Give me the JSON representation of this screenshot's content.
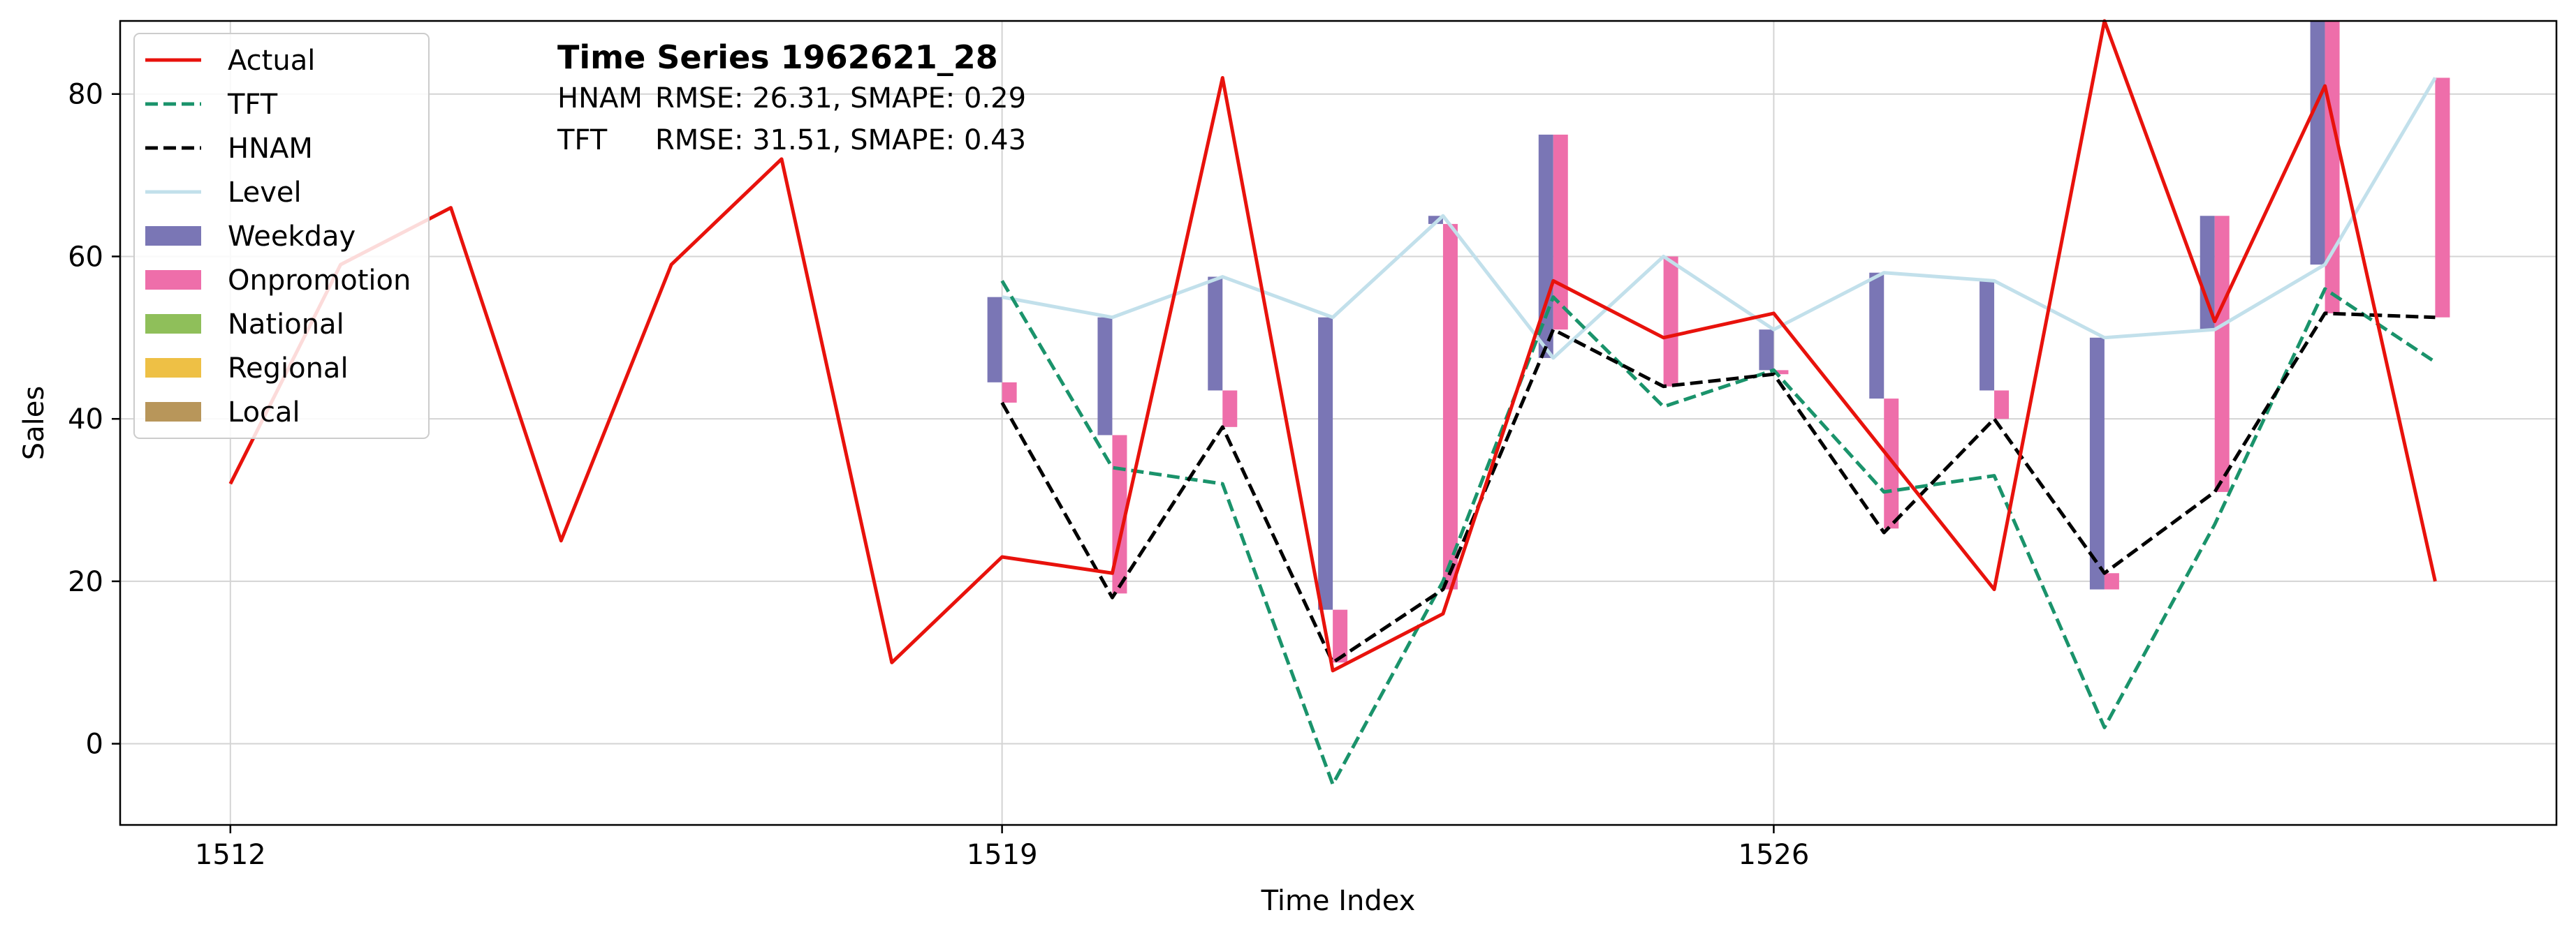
{
  "chart_data": {
    "type": "line",
    "title": "Time Series 1962621_28",
    "metrics": [
      {
        "model": "HNAM",
        "text": "RMSE: 26.31,   SMAPE: 0.29"
      },
      {
        "model": "TFT",
        "text": "RMSE: 31.51,   SMAPE: 0.43"
      }
    ],
    "xlabel": "Time Index",
    "ylabel": "Sales",
    "xlim": [
      1511,
      1533.1
    ],
    "ylim": [
      -10,
      89
    ],
    "xticks": [
      1512,
      1519,
      1526
    ],
    "yticks": [
      0,
      20,
      40,
      60,
      80
    ],
    "grid": true,
    "legend_position": "top-left",
    "legend": [
      "Actual",
      "TFT",
      "HNAM",
      "Level",
      "Weekday",
      "Onpromotion",
      "National",
      "Regional",
      "Local"
    ],
    "colors": {
      "Actual": "#e8120c",
      "TFT": "#1a936b",
      "HNAM": "#000000",
      "Level": "#c2e0eb",
      "Weekday": "#7a76b5",
      "Onpromotion": "#ee6eaa",
      "National": "#8fbf5a",
      "Regional": "#eec045",
      "Local": "#b8965a"
    },
    "series": [
      {
        "name": "Actual",
        "style": "solid",
        "x": [
          1512,
          1513,
          1514,
          1515,
          1516,
          1517,
          1518,
          1519,
          1520,
          1521,
          1522,
          1523,
          1524,
          1525,
          1526,
          1527,
          1528,
          1529,
          1530,
          1531,
          1532
        ],
        "values": [
          32,
          59,
          66,
          25,
          59,
          72,
          10,
          23,
          21,
          82,
          9,
          16,
          57,
          50,
          53,
          36,
          19,
          89,
          52,
          81,
          20
        ]
      },
      {
        "name": "TFT",
        "style": "dashed",
        "x": [
          1519,
          1520,
          1521,
          1522,
          1523,
          1524,
          1525,
          1526,
          1527,
          1528,
          1529,
          1530,
          1531,
          1532
        ],
        "values": [
          57,
          34,
          32,
          -5,
          20,
          55,
          41.5,
          46,
          31,
          33,
          2,
          27,
          56,
          47
        ]
      },
      {
        "name": "HNAM",
        "style": "dashed",
        "x": [
          1519,
          1520,
          1521,
          1522,
          1523,
          1524,
          1525,
          1526,
          1527,
          1528,
          1529,
          1530,
          1531,
          1532
        ],
        "values": [
          42,
          18,
          39,
          10,
          19,
          51,
          44,
          45.5,
          26,
          40,
          21,
          31,
          53,
          52.5
        ]
      },
      {
        "name": "Level",
        "style": "solid",
        "x": [
          1519,
          1520,
          1521,
          1522,
          1523,
          1524,
          1525,
          1526,
          1527,
          1528,
          1529,
          1530,
          1531,
          1532
        ],
        "values": [
          55,
          52.5,
          57.5,
          52.5,
          65,
          47.5,
          60,
          51,
          58,
          57,
          50,
          51,
          59,
          82
        ]
      }
    ],
    "components": [
      {
        "x": 1519,
        "weekday": [
          55,
          44.5
        ],
        "onpromotion": [
          44.5,
          42
        ]
      },
      {
        "x": 1520,
        "weekday": [
          52.5,
          38
        ],
        "onpromotion": [
          38,
          18.5
        ]
      },
      {
        "x": 1521,
        "weekday": [
          57.5,
          43.5
        ],
        "onpromotion": [
          43.5,
          39
        ]
      },
      {
        "x": 1522,
        "weekday": [
          52.5,
          16.5
        ],
        "onpromotion": [
          16.5,
          10
        ]
      },
      {
        "x": 1523,
        "weekday": [
          65,
          64
        ],
        "onpromotion": [
          64,
          19
        ]
      },
      {
        "x": 1524,
        "weekday": [
          75,
          47.5
        ],
        "onpromotion": [
          75,
          51
        ]
      },
      {
        "x": 1525,
        "weekday": [
          60,
          60
        ],
        "onpromotion": [
          60,
          44
        ]
      },
      {
        "x": 1526,
        "weekday": [
          51,
          46
        ],
        "onpromotion": [
          46,
          45.5
        ]
      },
      {
        "x": 1527,
        "weekday": [
          58,
          42.5
        ],
        "onpromotion": [
          42.5,
          26.5
        ]
      },
      {
        "x": 1528,
        "weekday": [
          57,
          43.5
        ],
        "onpromotion": [
          43.5,
          40
        ]
      },
      {
        "x": 1529,
        "weekday": [
          50,
          19
        ],
        "onpromotion": [
          21,
          19
        ]
      },
      {
        "x": 1530,
        "weekday": [
          65,
          51
        ],
        "onpromotion": [
          65,
          31
        ]
      },
      {
        "x": 1531,
        "weekday": [
          89,
          59
        ],
        "onpromotion": [
          89,
          53
        ]
      },
      {
        "x": 1532,
        "weekday": [
          82,
          82
        ],
        "onpromotion": [
          82,
          52.5
        ]
      }
    ]
  }
}
